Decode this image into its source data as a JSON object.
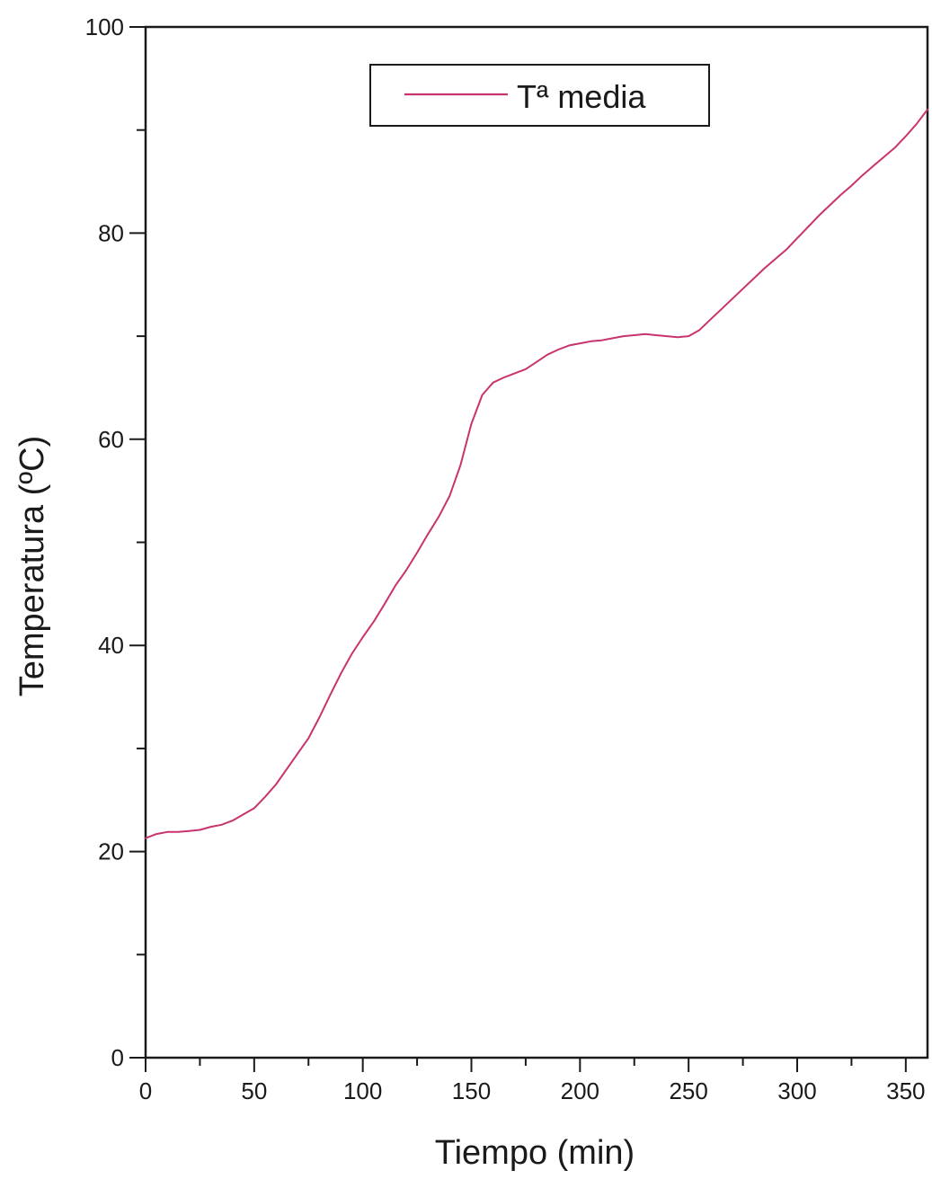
{
  "chart_data": {
    "type": "line",
    "title": "",
    "xlabel": "Tiempo (min)",
    "ylabel": "Temperatura (ºC)",
    "xlim": [
      0,
      360
    ],
    "ylim": [
      0,
      100
    ],
    "x_ticks": [
      0,
      50,
      100,
      150,
      200,
      250,
      300,
      350
    ],
    "x_tick_labels": [
      "0",
      "50",
      "100",
      "150",
      "200",
      "250",
      "300",
      "350"
    ],
    "y_ticks": [
      0,
      20,
      40,
      60,
      80,
      100
    ],
    "y_tick_labels": [
      "0",
      "20",
      "40",
      "60",
      "80",
      "100"
    ],
    "grid": false,
    "legend_position": "top-center",
    "series": [
      {
        "name": "Tª media",
        "color": "#c8336e",
        "x": [
          0,
          5,
          10,
          15,
          20,
          25,
          30,
          35,
          40,
          45,
          50,
          55,
          60,
          65,
          70,
          75,
          80,
          85,
          90,
          95,
          100,
          105,
          110,
          115,
          120,
          125,
          130,
          135,
          140,
          145,
          150,
          155,
          160,
          165,
          170,
          175,
          180,
          185,
          190,
          195,
          200,
          205,
          210,
          215,
          220,
          225,
          230,
          235,
          240,
          245,
          250,
          255,
          260,
          265,
          270,
          275,
          280,
          285,
          290,
          295,
          300,
          305,
          310,
          315,
          320,
          325,
          330,
          335,
          340,
          345,
          350,
          355,
          360
        ],
        "values": [
          21.3,
          21.7,
          21.9,
          21.9,
          22.0,
          22.1,
          22.4,
          22.6,
          23.0,
          23.6,
          24.2,
          25.3,
          26.5,
          28.0,
          29.5,
          31.0,
          33.0,
          35.2,
          37.3,
          39.2,
          40.8,
          42.3,
          44.0,
          45.8,
          47.3,
          49.0,
          50.8,
          52.5,
          54.5,
          57.5,
          61.5,
          64.3,
          65.5,
          66.0,
          66.4,
          66.8,
          67.5,
          68.2,
          68.7,
          69.1,
          69.3,
          69.5,
          69.6,
          69.8,
          70.0,
          70.1,
          70.2,
          70.1,
          70.0,
          69.9,
          70.0,
          70.6,
          71.6,
          72.6,
          73.6,
          74.6,
          75.6,
          76.6,
          77.5,
          78.4,
          79.5,
          80.6,
          81.7,
          82.7,
          83.7,
          84.6,
          85.6,
          86.5,
          87.4,
          88.3,
          89.4,
          90.6,
          92.0
        ]
      }
    ]
  }
}
